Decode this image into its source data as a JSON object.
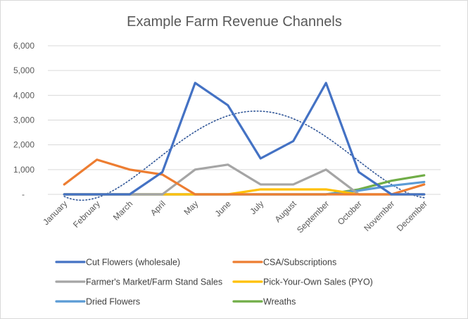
{
  "chart_data": {
    "type": "line",
    "title": "Example Farm Revenue Channels",
    "xlabel": "",
    "ylabel": "",
    "ylim": [
      0,
      6000
    ],
    "yticks": [
      0,
      1000,
      2000,
      3000,
      4000,
      5000,
      6000
    ],
    "ytick_labels": [
      "-",
      "1,000",
      "2,000",
      "3,000",
      "4,000",
      "5,000",
      "6,000"
    ],
    "grid": true,
    "legend_position": "bottom",
    "categories": [
      "January",
      "February",
      "March",
      "April",
      "May",
      "June",
      "July",
      "August",
      "September",
      "October",
      "November",
      "December"
    ],
    "series": [
      {
        "name": "Cut Flowers (wholesale)",
        "color": "#4472c4",
        "values": [
          0,
          0,
          0,
          900,
          4500,
          3600,
          1450,
          2150,
          4500,
          900,
          0,
          0
        ]
      },
      {
        "name": "CSA/Subscriptions",
        "color": "#ed7d31",
        "values": [
          400,
          1400,
          1000,
          800,
          0,
          0,
          0,
          0,
          0,
          0,
          0,
          400
        ]
      },
      {
        "name": "Farmer's Market/Farm Stand Sales",
        "color": "#a5a5a5",
        "values": [
          0,
          0,
          0,
          0,
          1000,
          1200,
          400,
          400,
          1000,
          0,
          0,
          0
        ]
      },
      {
        "name": "Pick-Your-Own Sales (PYO)",
        "color": "#ffc000",
        "values": [
          0,
          0,
          0,
          0,
          0,
          0,
          200,
          200,
          200,
          0,
          0,
          0
        ]
      },
      {
        "name": "Dried Flowers",
        "color": "#5b9bd5",
        "values": [
          0,
          0,
          0,
          0,
          0,
          0,
          0,
          0,
          0,
          150,
          350,
          500
        ]
      },
      {
        "name": "Wreaths",
        "color": "#70ad47",
        "values": [
          0,
          0,
          0,
          0,
          0,
          0,
          0,
          0,
          0,
          200,
          550,
          770
        ]
      }
    ],
    "trendline": {
      "series": "Cut Flowers (wholesale)",
      "style": "dotted",
      "color": "#2f5597"
    }
  }
}
